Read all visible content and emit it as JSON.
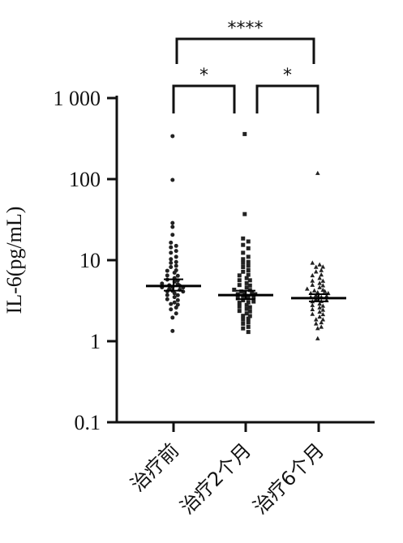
{
  "chart_data": {
    "type": "scatter",
    "title": "",
    "xlabel": "",
    "ylabel": "IL-6(pg/mL)",
    "y_scale": "log",
    "ylim": [
      0.1,
      1000
    ],
    "y_ticks": [
      {
        "value": 0.1,
        "label": "0.1"
      },
      {
        "value": 1,
        "label": "1"
      },
      {
        "value": 10,
        "label": "10"
      },
      {
        "value": 100,
        "label": "100"
      },
      {
        "value": 1000,
        "label": "1 000"
      }
    ],
    "categories": [
      "治疗前",
      "治疗2个月",
      "治疗6个月"
    ],
    "summary": [
      {
        "category": "治疗前",
        "center": 4.8,
        "error_low": 4.2,
        "error_high": 5.8
      },
      {
        "category": "治疗2个月",
        "center": 3.7,
        "error_low": 3.3,
        "error_high": 4.2
      },
      {
        "category": "治疗6个月",
        "center": 3.4,
        "error_low": 3.1,
        "error_high": 3.8
      }
    ],
    "series": [
      {
        "category": "治疗前",
        "marker": "circle",
        "values": [
          330,
          95,
          28,
          25,
          20,
          16,
          15,
          14,
          13,
          12,
          11,
          10,
          9.5,
          9,
          8.5,
          8,
          7.5,
          7.2,
          7,
          6.6,
          6.3,
          6,
          5.8,
          5.6,
          5.4,
          5.2,
          5,
          4.9,
          4.8,
          4.7,
          4.6,
          4.5,
          4.4,
          4.3,
          4.2,
          4.1,
          4,
          3.9,
          3.8,
          3.6,
          3.5,
          3.3,
          3.2,
          3,
          2.9,
          2.8,
          2.6,
          2.4,
          2.2,
          1.9,
          1.3
        ]
      },
      {
        "category": "治疗2个月",
        "marker": "square",
        "values": [
          350,
          36,
          18,
          17,
          15,
          14,
          12,
          11,
          10,
          9.5,
          9,
          8.5,
          8,
          7.5,
          7,
          6.6,
          6.3,
          6,
          5.8,
          5.5,
          5.2,
          5,
          4.8,
          4.6,
          4.4,
          4.2,
          4.1,
          4,
          3.9,
          3.8,
          3.7,
          3.6,
          3.5,
          3.4,
          3.3,
          3.2,
          3.1,
          3,
          2.9,
          2.8,
          2.7,
          2.6,
          2.5,
          2.4,
          2.3,
          2.2,
          2.1,
          2,
          1.9,
          1.8,
          1.7,
          1.6,
          1.5,
          1.4,
          1.3
        ]
      },
      {
        "category": "治疗6个月",
        "marker": "triangle",
        "values": [
          115,
          9,
          8.8,
          8.5,
          8,
          7.5,
          7,
          6.6,
          6.3,
          6,
          5.7,
          5.4,
          5.2,
          5,
          4.8,
          4.6,
          4.4,
          4.3,
          4.2,
          4.1,
          4,
          3.9,
          3.8,
          3.7,
          3.6,
          3.5,
          3.4,
          3.3,
          3.2,
          3.1,
          3,
          2.9,
          2.8,
          2.7,
          2.6,
          2.5,
          2.4,
          2.3,
          2.2,
          2.1,
          2,
          1.9,
          1.8,
          1.7,
          1.6,
          1.5,
          1.4,
          1.05
        ]
      }
    ],
    "significance": [
      {
        "from": "治疗前",
        "to": "治疗6个月",
        "label": "****"
      },
      {
        "from": "治疗前",
        "to": "治疗2个月",
        "label": "*"
      },
      {
        "from": "治疗2个月",
        "to": "治疗6个月",
        "label": "*"
      }
    ],
    "colors": {
      "points": "#222222",
      "axis": "#111111",
      "summary": "#000000"
    }
  }
}
